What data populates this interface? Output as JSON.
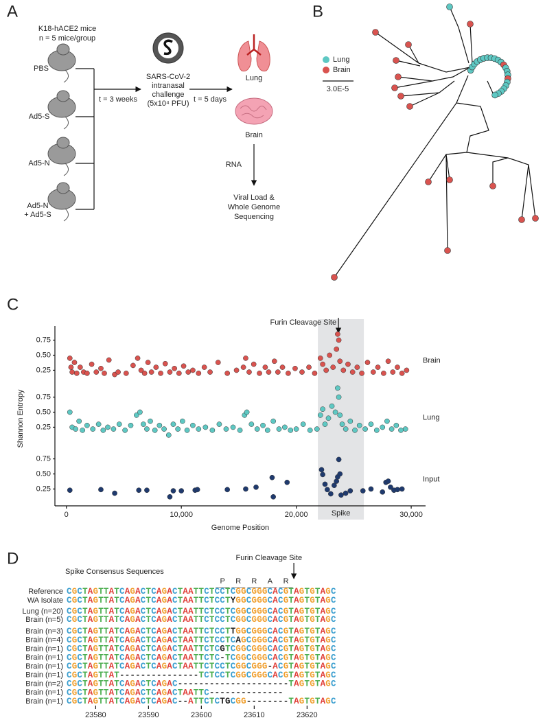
{
  "panel_labels": [
    "A",
    "B",
    "C",
    "D"
  ],
  "panel_a": {
    "cohort": [
      "K18-hACE2 mice",
      "n = 5 mice/group"
    ],
    "groups": [
      [
        "PBS"
      ],
      [
        "Ad5-S"
      ],
      [
        "Ad5-N"
      ],
      [
        "Ad5-N",
        "+ Ad5-S"
      ]
    ],
    "step1": "t = 3 weeks",
    "challenge": [
      "SARS-CoV-2",
      "intranasal",
      "challenge",
      "(5x10⁴ PFU)"
    ],
    "step2": "t = 5 days",
    "organs": [
      "Lung",
      "Brain"
    ],
    "rna": "RNA",
    "readout": [
      "Viral Load &",
      "Whole Genome",
      "Sequencing"
    ]
  },
  "panel_b": {
    "legend": [
      {
        "name": "Lung",
        "color": "#5ec8c3"
      },
      {
        "name": "Brain",
        "color": "#d9534f"
      }
    ],
    "scale_bar": "3.0E-5"
  },
  "chart_data": [
    {
      "type": "scatter",
      "name": "Brain",
      "color": "#d9534f",
      "x": [
        300,
        400,
        500,
        700,
        900,
        1200,
        1500,
        1800,
        2200,
        2600,
        3000,
        3300,
        3700,
        4200,
        4500,
        5200,
        5800,
        6200,
        6500,
        6800,
        7100,
        7400,
        7800,
        8200,
        8600,
        9000,
        9400,
        9800,
        10200,
        10600,
        11000,
        11500,
        12000,
        12500,
        13200,
        14000,
        14800,
        15400,
        15600,
        15900,
        16300,
        16800,
        17300,
        17600,
        18100,
        18400,
        18800,
        19300,
        19900,
        20500,
        21100,
        21600,
        22100,
        22300,
        22600,
        22900,
        23200,
        23500,
        23600,
        23700,
        23800,
        24100,
        24500,
        24900,
        25300,
        25700,
        26200,
        26700,
        27100,
        27600,
        28000,
        28400,
        28800,
        29200,
        29600
      ],
      "values": [
        0.45,
        0.3,
        0.22,
        0.38,
        0.2,
        0.3,
        0.22,
        0.2,
        0.35,
        0.22,
        0.28,
        0.2,
        0.42,
        0.18,
        0.22,
        0.2,
        0.33,
        0.45,
        0.25,
        0.2,
        0.38,
        0.22,
        0.3,
        0.2,
        0.36,
        0.22,
        0.28,
        0.2,
        0.32,
        0.22,
        0.25,
        0.2,
        0.3,
        0.22,
        0.38,
        0.2,
        0.25,
        0.3,
        0.45,
        0.22,
        0.35,
        0.2,
        0.3,
        0.22,
        0.4,
        0.22,
        0.3,
        0.2,
        0.28,
        0.22,
        0.3,
        0.2,
        0.45,
        0.35,
        0.25,
        0.5,
        0.3,
        0.6,
        0.85,
        0.75,
        0.4,
        0.25,
        0.35,
        0.22,
        0.3,
        0.2,
        0.38,
        0.22,
        0.3,
        0.2,
        0.4,
        0.22,
        0.3,
        0.2,
        0.25
      ],
      "ylim": [
        0.05,
        0.95
      ],
      "yticks": [
        0.25,
        {
          "value": 0.5,
          "label": "0.50"
        },
        0.75
      ]
    },
    {
      "type": "scatter",
      "name": "Lung",
      "color": "#5ec8c3",
      "ylabel": "Shannon Entropy",
      "x": [
        300,
        500,
        800,
        1100,
        1400,
        1800,
        2300,
        2800,
        3200,
        3600,
        4100,
        4600,
        5100,
        5600,
        6100,
        6400,
        6700,
        7000,
        7300,
        7700,
        8100,
        8500,
        8900,
        9300,
        9700,
        10100,
        10500,
        11000,
        11500,
        12100,
        12700,
        13300,
        13900,
        14500,
        15100,
        15500,
        15700,
        16100,
        16600,
        17100,
        17500,
        18000,
        18500,
        19000,
        19500,
        20000,
        20600,
        21200,
        21800,
        22100,
        22300,
        22500,
        22800,
        23100,
        23400,
        23600,
        23700,
        23800,
        24000,
        24300,
        24700,
        25100,
        25500,
        26000,
        26500,
        27000,
        27500,
        27900,
        28300,
        28700,
        29100,
        29500
      ],
      "values": [
        0.5,
        0.25,
        0.22,
        0.35,
        0.2,
        0.28,
        0.22,
        0.3,
        0.2,
        0.25,
        0.22,
        0.3,
        0.2,
        0.28,
        0.45,
        0.5,
        0.3,
        0.22,
        0.35,
        0.2,
        0.28,
        0.22,
        0.12,
        0.3,
        0.22,
        0.35,
        0.2,
        0.28,
        0.22,
        0.25,
        0.2,
        0.3,
        0.22,
        0.25,
        0.2,
        0.45,
        0.5,
        0.3,
        0.22,
        0.28,
        0.2,
        0.35,
        0.22,
        0.25,
        0.2,
        0.22,
        0.3,
        0.2,
        0.22,
        0.45,
        0.55,
        0.3,
        0.4,
        0.6,
        0.5,
        0.9,
        0.75,
        0.45,
        0.3,
        0.22,
        0.35,
        0.2,
        0.28,
        0.22,
        0.3,
        0.2,
        0.25,
        0.35,
        0.22,
        0.28,
        0.2,
        0.22
      ],
      "ylim": [
        0.05,
        0.95
      ],
      "yticks": [
        0.25,
        {
          "value": 0.5,
          "label": "0.50"
        },
        0.75
      ]
    },
    {
      "type": "scatter",
      "name": "Input",
      "color": "#1f3a6e",
      "xlabel": "Genome Position",
      "x": [
        300,
        3000,
        4200,
        6300,
        7000,
        9000,
        9300,
        10000,
        11200,
        11400,
        14000,
        15600,
        16500,
        17900,
        18000,
        19200,
        22200,
        22300,
        22500,
        22700,
        23000,
        23300,
        23500,
        23600,
        23700,
        23800,
        23900,
        24300,
        24700,
        25800,
        26500,
        27500,
        27800,
        28000,
        28200,
        28500,
        28800,
        29200
      ],
      "values": [
        0.23,
        0.24,
        0.18,
        0.23,
        0.23,
        0.12,
        0.22,
        0.22,
        0.23,
        0.24,
        0.24,
        0.25,
        0.28,
        0.44,
        0.12,
        0.36,
        0.57,
        0.49,
        0.33,
        0.24,
        0.17,
        0.31,
        0.38,
        0.45,
        0.74,
        0.5,
        0.15,
        0.18,
        0.22,
        0.22,
        0.25,
        0.2,
        0.36,
        0.38,
        0.28,
        0.23,
        0.24,
        0.25
      ],
      "ylim": [
        0.05,
        0.95
      ],
      "yticks": [
        0.25,
        {
          "value": 0.5,
          "label": "0.50"
        },
        0.75
      ],
      "xlim": [
        -1000,
        31250
      ],
      "xticks": [
        0,
        {
          "value": 10000,
          "label": "10,000"
        },
        {
          "value": 20000,
          "label": "20,000"
        },
        {
          "value": 30000,
          "label": "30,000"
        }
      ],
      "highlight": {
        "label": "Spike",
        "range": [
          21880,
          25880
        ]
      },
      "annotation": {
        "text": "Furin Cleavage Site",
        "x": 23670
      }
    }
  ],
  "panel_d": {
    "title": "Spike Consensus Sequences",
    "annotation": {
      "text": "Furin Cleavage Site",
      "x": 23617.5
    },
    "codons": [
      {
        "aa": "P",
        "range": [
          23602.5,
          23605.5
        ]
      },
      {
        "aa": "R",
        "range": [
          23605.5,
          23608.5
        ]
      },
      {
        "aa": "R",
        "range": [
          23608.5,
          23611.5
        ]
      },
      {
        "aa": "A",
        "range": [
          23611.5,
          23614.5
        ]
      },
      {
        "aa": "R",
        "range": [
          23614.5,
          23617.5
        ]
      }
    ],
    "rows": [
      {
        "label": "Reference",
        "sequence": "CGCTAGTTATCAGACTCAGACTAATTCTCCTCGGCGGGCACGTAGTGTAGC"
      },
      {
        "label": "WA Isolate",
        "sequence": "CGCTAGTTATCAGACTCAGACTAATTCTCCTYGGCGGGCACGTAGTGTAGC"
      },
      {
        "label": "Lung (n=20)",
        "sequence": "CGCTAGTTATCAGACTCAGACTAATTCTCCTCGGCGGGCACGTAGTGTAGC"
      },
      {
        "label": "Brain (n=5)",
        "sequence": "CGCTAGTTATCAGACTCAGACTAATTCTCCTCGGCGGGCACGTAGTGTAGC"
      },
      {
        "label": "Brain (n=3)",
        "sequence": "CGCTAGTTATCAGACTCAGACTAATTCTCCTTGGCGGGCACGTAGTGTAGC"
      },
      {
        "label": "Brain (n=4)",
        "sequence": "CGCTAGTTATCAGACTCAGACTAATTCTCCTCAGCGGGCACGTAGTGTAGC"
      },
      {
        "label": "Brain (n=1)",
        "sequence": "CGCTAGTTATCAGACTCAGACTAATTCTCGTCGGCGGGCACGTAGTGTAGC"
      },
      {
        "label": "Brain (n=1)",
        "sequence": "CGCTAGTTATCAGACTCAGACTAATTCTC-TCGGCGGGCACGTAGTGTAGC"
      },
      {
        "label": "Brain (n=1)",
        "sequence": "CGCTAGTTATCAGACTCAGACTAATTCTCCTCGGCGGG-ACGTAGTGTAGC"
      },
      {
        "label": "Brain (n=1)",
        "sequence": "CGCTAGTTAT---------------TCTCCTCGGCGGGCACGTAGTGTAGC"
      },
      {
        "label": "Brain (n=2)",
        "sequence": "CGCTAGTTATCAGACTCAGAC---------------------TAGTGTAGC"
      },
      {
        "label": "Brain (n=1)",
        "sequence": "CGCTAGTTATCAGACTCAGACTAATTC--------------"
      },
      {
        "label": "Brain (n=1)",
        "sequence": "CGCTAGTTATCAGACTCAGAC--ATTCTCTGCGG--------TAGTGTAGC"
      }
    ],
    "xlim": [
      23574.5,
      23625.5
    ],
    "xticks": [
      23580,
      23590,
      23600,
      23610,
      23620
    ]
  }
}
